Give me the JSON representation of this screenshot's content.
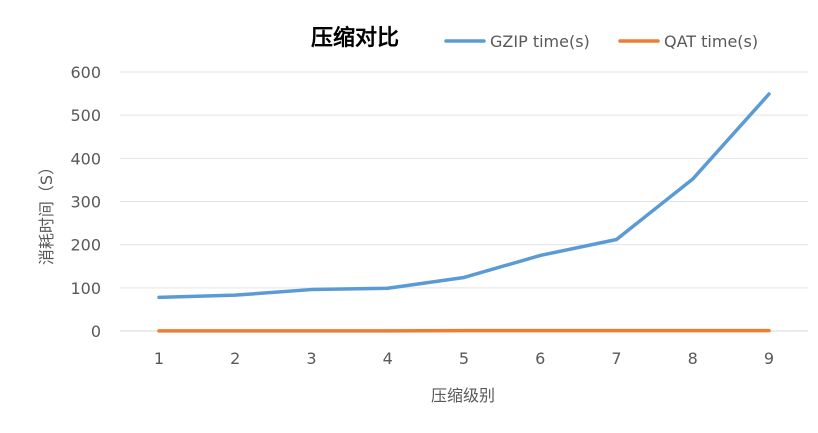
{
  "chart_data": {
    "type": "line",
    "title": "压缩对比",
    "xlabel": "压缩级别",
    "ylabel": "消耗时间（S）",
    "categories": [
      "1",
      "2",
      "3",
      "4",
      "5",
      "6",
      "7",
      "8",
      "9"
    ],
    "ylim": [
      0,
      600
    ],
    "yticks": [
      0,
      100,
      200,
      300,
      400,
      500,
      600
    ],
    "grid": "horizontal",
    "legend_position": "top-right",
    "series": [
      {
        "name": "GZIP time(s)",
        "color": "#5B9BD5",
        "values": [
          78,
          83,
          96,
          99,
          124,
          175,
          212,
          352,
          549
        ]
      },
      {
        "name": "QAT time(s)",
        "color": "#ED7D31",
        "values": [
          0.3,
          0.3,
          0.3,
          0.3,
          1,
          1,
          1,
          1,
          1
        ]
      }
    ]
  }
}
